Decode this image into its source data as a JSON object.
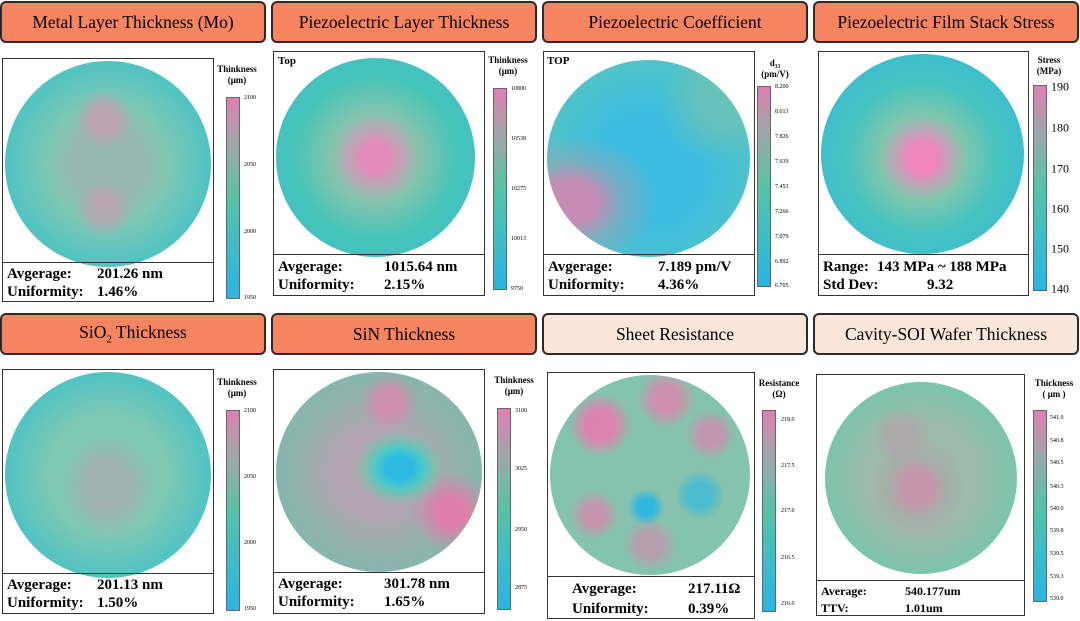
{
  "panels": {
    "p1": {
      "title": "Metal Layer Thickness (Mo)",
      "cb_title1": "Thinkness",
      "cb_title2": "(μm)",
      "ticks": [
        "2100",
        "2050",
        "2000",
        "1950"
      ],
      "s1_label": "Avgerage:",
      "s1_value": "201.26 nm",
      "s2_label": "Uniformity:",
      "s2_value": "1.46%"
    },
    "p2": {
      "title": "Piezoelectric Layer Thickness",
      "corner": "Top",
      "cb_title1": "Thinkness",
      "cb_title2": "(μm)",
      "ticks": [
        "10800",
        "10538",
        "10275",
        "10013",
        "9750"
      ],
      "s1_label": "Avgerage:",
      "s1_value": "1015.64 nm",
      "s2_label": "Uniformity:",
      "s2_value": "2.15%"
    },
    "p3": {
      "title": "Piezoelectric Coefficient",
      "corner": "TOP",
      "cb_title1": "d₃₃",
      "cb_title2": "(pm/V)",
      "ticks": [
        "8.200",
        "8.013",
        "7.826",
        "7.639",
        "7.453",
        "7.266",
        "7.079",
        "6.892",
        "6.705"
      ],
      "s1_label": "Avgerage:",
      "s1_value": "7.189 pm/V",
      "s2_label": "Uniformity:",
      "s2_value": "4.36%"
    },
    "p4": {
      "title": "Piezoelectric Film Stack Stress",
      "cb_title1": "Stress",
      "cb_title2": "(MPa)",
      "ticks": [
        "190",
        "180",
        "170",
        "160",
        "150",
        "140"
      ],
      "s1_label": "Range:",
      "s1_value": "143 MPa ~ 188 MPa",
      "s2_label": "Std Dev:",
      "s2_value": "9.32"
    },
    "p5": {
      "title_main": "SiO",
      "title_sub": "2",
      "title_rest": " Thickness",
      "cb_title1": "Thinkness",
      "cb_title2": "(μm)",
      "ticks": [
        "2100",
        "2050",
        "2000",
        "1950"
      ],
      "s1_label": "Avgerage:",
      "s1_value": "201.13 nm",
      "s2_label": "Uniformity:",
      "s2_value": "1.50%"
    },
    "p6": {
      "title": "SiN Thickness",
      "cb_title1": "Thinkness",
      "cb_title2": "(μm)",
      "ticks": [
        "3100",
        "3025",
        "2950",
        "2875"
      ],
      "s1_label": "Avgerage:",
      "s1_value": "301.78 nm",
      "s2_label": "Uniformity:",
      "s2_value": "1.65%"
    },
    "p7": {
      "title": "Sheet Resistance",
      "cb_title1": "Resistance",
      "cb_title2": "(Ω)",
      "ticks": [
        "218.0",
        "217.5",
        "217.0",
        "216.5",
        "216.0"
      ],
      "s1_label": "Avgerage:",
      "s1_value": "217.11Ω",
      "s2_label": "Uniformity:",
      "s2_value": "0.39%"
    },
    "p8": {
      "title": "Cavity-SOI Wafer Thickness",
      "cb_title1": "Thickness",
      "cb_title2": "( μm )",
      "ticks": [
        "541.0",
        "540.8",
        "540.5",
        "540.3",
        "540.0",
        "539.8",
        "539.5",
        "539.3",
        "539.0"
      ],
      "s1_label": "Average:",
      "s1_value": "540.177um",
      "s2_label": "TTV:",
      "s2_value": "1.01um"
    }
  },
  "colors": {
    "header_active": "#f6845e",
    "header_pale": "#fbe6d9",
    "scale_high": "#ea7fb0",
    "scale_mid": "#4fc7ab",
    "scale_low": "#2ab4e3"
  }
}
